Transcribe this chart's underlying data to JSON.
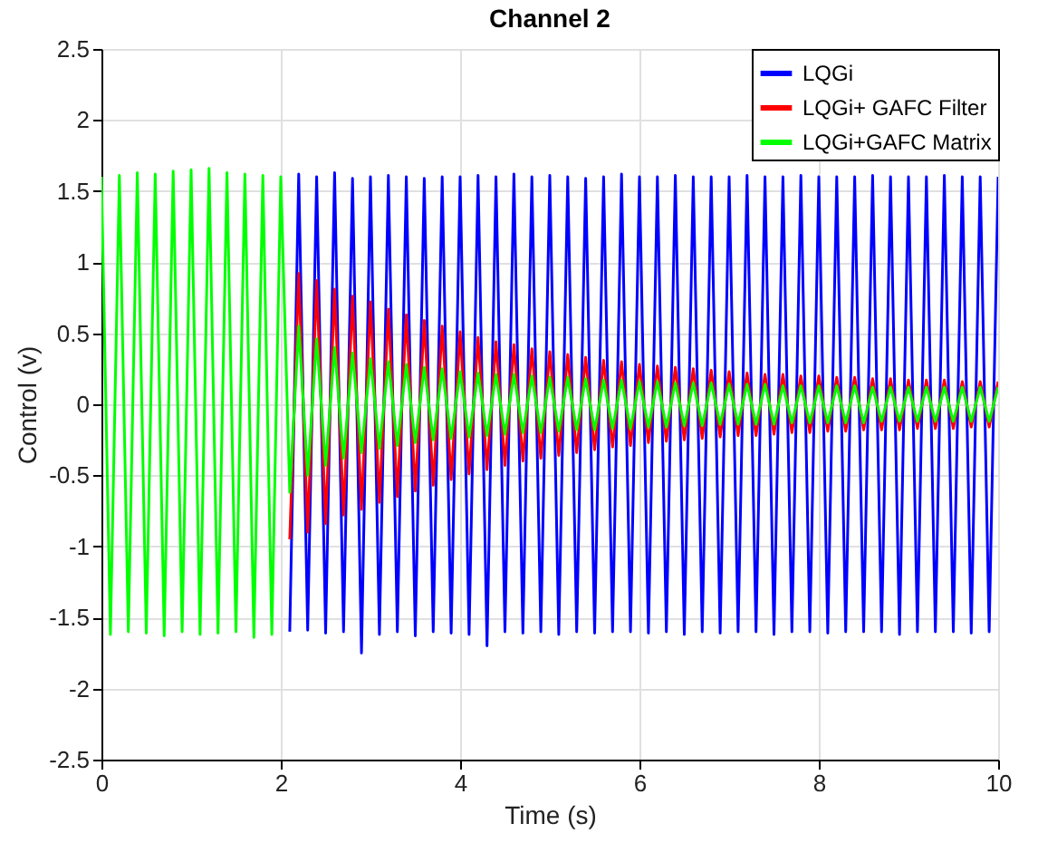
{
  "chart_data": {
    "type": "line",
    "title": "Channel 2",
    "xlabel": "Time (s)",
    "ylabel": "Control (v)",
    "xlim": [
      0,
      10
    ],
    "xticks": [
      0,
      2,
      4,
      6,
      8,
      10
    ],
    "ylim": [
      -2.5,
      2.5
    ],
    "yticks": [
      -2.5,
      -2,
      -1.5,
      -1,
      -0.5,
      0,
      0.5,
      1,
      1.5,
      2,
      2.5
    ],
    "grid": true,
    "legend": "top right",
    "series": [
      {
        "name": "LQGi",
        "color": "#0000ff",
        "x": [
          2.1,
          2.2,
          2.3,
          2.4,
          2.5,
          2.6,
          2.7,
          2.8,
          2.9,
          3,
          3.1,
          3.2,
          3.3,
          3.4,
          3.5,
          3.6,
          3.7,
          3.8,
          3.9,
          4,
          4.1,
          4.2,
          4.3,
          4.4,
          4.5,
          4.6,
          4.7,
          4.8,
          4.9,
          5,
          5.1,
          5.2,
          5.3,
          5.4,
          5.5,
          5.6,
          5.7,
          5.8,
          5.9,
          6,
          6.1,
          6.2,
          6.3,
          6.4,
          6.5,
          6.6,
          6.7,
          6.8,
          6.9,
          7,
          7.1,
          7.2,
          7.3,
          7.4,
          7.5,
          7.6,
          7.7,
          7.8,
          7.9,
          8,
          8.1,
          8.2,
          8.3,
          8.4,
          8.5,
          8.6,
          8.7,
          8.8,
          8.9,
          9,
          9.1,
          9.2,
          9.3,
          9.4,
          9.5,
          9.6,
          9.7,
          9.8,
          9.9,
          10
        ],
        "values": [
          -1.6,
          1.62,
          -1.59,
          1.6,
          -1.61,
          1.63,
          -1.6,
          1.59,
          -1.75,
          1.6,
          -1.62,
          1.61,
          -1.6,
          1.6,
          -1.63,
          1.59,
          -1.6,
          1.6,
          -1.61,
          1.6,
          -1.62,
          1.61,
          -1.7,
          1.6,
          -1.6,
          1.62,
          -1.61,
          1.6,
          -1.6,
          1.61,
          -1.62,
          1.6,
          -1.6,
          1.59,
          -1.61,
          1.6,
          -1.6,
          1.62,
          -1.6,
          1.6,
          -1.61,
          1.6,
          -1.6,
          1.61,
          -1.62,
          1.6,
          -1.6,
          1.6,
          -1.61,
          1.6,
          -1.6,
          1.61,
          -1.6,
          1.6,
          -1.62,
          1.6,
          -1.6,
          1.61,
          -1.6,
          1.6,
          -1.61,
          1.6,
          -1.6,
          1.6,
          -1.6,
          1.61,
          -1.6,
          1.6,
          -1.62,
          1.6,
          -1.6,
          1.6,
          -1.6,
          1.61,
          -1.6,
          1.6,
          -1.61,
          1.6,
          -1.6,
          1.6
        ]
      },
      {
        "name": "LQGi+ GAFC Filter",
        "color": "#ff0000",
        "x": [
          2.1,
          2.2,
          2.3,
          2.4,
          2.5,
          2.6,
          2.7,
          2.8,
          2.9,
          3,
          3.1,
          3.2,
          3.3,
          3.4,
          3.5,
          3.6,
          3.7,
          3.8,
          3.9,
          4,
          4.1,
          4.2,
          4.3,
          4.4,
          4.5,
          4.6,
          4.7,
          4.8,
          4.9,
          5,
          5.1,
          5.2,
          5.3,
          5.4,
          5.5,
          5.6,
          5.7,
          5.8,
          5.9,
          6,
          6.1,
          6.2,
          6.3,
          6.4,
          6.5,
          6.6,
          6.7,
          6.8,
          6.9,
          7,
          7.1,
          7.2,
          7.3,
          7.4,
          7.5,
          7.6,
          7.7,
          7.8,
          7.9,
          8,
          8.1,
          8.2,
          8.3,
          8.4,
          8.5,
          8.6,
          8.7,
          8.8,
          8.9,
          9,
          9.1,
          9.2,
          9.3,
          9.4,
          9.5,
          9.6,
          9.7,
          9.8,
          9.9,
          10
        ],
        "values": [
          -0.95,
          0.92,
          -0.9,
          0.87,
          -0.84,
          0.81,
          -0.78,
          0.76,
          -0.74,
          0.72,
          -0.69,
          0.67,
          -0.65,
          0.63,
          -0.61,
          0.59,
          -0.57,
          0.55,
          -0.53,
          0.51,
          -0.49,
          0.47,
          -0.46,
          0.44,
          -0.43,
          0.42,
          -0.4,
          0.39,
          -0.38,
          0.37,
          -0.36,
          0.35,
          -0.34,
          0.33,
          -0.32,
          0.31,
          -0.3,
          0.3,
          -0.29,
          0.28,
          -0.27,
          0.27,
          -0.26,
          0.26,
          -0.25,
          0.25,
          -0.24,
          0.24,
          -0.23,
          0.23,
          -0.22,
          0.22,
          -0.22,
          0.21,
          -0.21,
          0.21,
          -0.2,
          0.2,
          -0.2,
          0.2,
          -0.19,
          0.19,
          -0.19,
          0.19,
          -0.18,
          0.18,
          -0.18,
          0.18,
          -0.18,
          0.17,
          -0.17,
          0.17,
          -0.17,
          0.17,
          -0.17,
          0.16,
          -0.16,
          0.16,
          -0.16,
          0.16
        ]
      },
      {
        "name": "LQGi+GAFC Matrix",
        "color": "#00ff00",
        "x": [
          0,
          0.1,
          0.2,
          0.3,
          0.4,
          0.5,
          0.6,
          0.7,
          0.8,
          0.9,
          1,
          1.1,
          1.2,
          1.3,
          1.4,
          1.5,
          1.6,
          1.7,
          1.8,
          1.9,
          2,
          2.1,
          2.2,
          2.3,
          2.4,
          2.5,
          2.6,
          2.7,
          2.8,
          2.9,
          3,
          3.1,
          3.2,
          3.3,
          3.4,
          3.5,
          3.6,
          3.7,
          3.8,
          3.9,
          4,
          4.1,
          4.2,
          4.3,
          4.4,
          4.5,
          4.6,
          4.7,
          4.8,
          4.9,
          5,
          5.1,
          5.2,
          5.3,
          5.4,
          5.5,
          5.6,
          5.7,
          5.8,
          5.9,
          6,
          6.1,
          6.2,
          6.3,
          6.4,
          6.5,
          6.6,
          6.7,
          6.8,
          6.9,
          7,
          7.1,
          7.2,
          7.3,
          7.4,
          7.5,
          7.6,
          7.7,
          7.8,
          7.9,
          8,
          8.1,
          8.2,
          8.3,
          8.4,
          8.5,
          8.6,
          8.7,
          8.8,
          8.9,
          9,
          9.1,
          9.2,
          9.3,
          9.4,
          9.5,
          9.6,
          9.7,
          9.8,
          9.9,
          10
        ],
        "values": [
          1.6,
          -1.62,
          1.61,
          -1.6,
          1.63,
          -1.61,
          1.62,
          -1.63,
          1.64,
          -1.6,
          1.65,
          -1.62,
          1.66,
          -1.61,
          1.63,
          -1.6,
          1.62,
          -1.64,
          1.61,
          -1.62,
          1.6,
          -0.62,
          0.55,
          -0.5,
          0.46,
          -0.43,
          0.4,
          -0.38,
          0.36,
          -0.34,
          0.32,
          -0.31,
          0.3,
          -0.29,
          0.28,
          -0.27,
          0.26,
          -0.25,
          0.25,
          -0.24,
          0.23,
          -0.23,
          0.22,
          -0.22,
          0.21,
          -0.21,
          0.21,
          -0.2,
          0.2,
          -0.2,
          0.19,
          -0.19,
          0.19,
          -0.18,
          0.18,
          -0.18,
          0.17,
          -0.17,
          0.17,
          -0.17,
          0.16,
          -0.16,
          0.16,
          -0.16,
          0.15,
          -0.15,
          0.15,
          -0.15,
          0.15,
          -0.14,
          0.14,
          -0.14,
          0.14,
          -0.14,
          0.14,
          -0.14,
          0.13,
          -0.13,
          0.13,
          -0.13,
          0.13,
          -0.13,
          0.13,
          -0.13,
          0.13,
          -0.13,
          0.12,
          -0.12,
          0.12,
          -0.12,
          0.12,
          -0.12,
          0.12,
          -0.12,
          0.12,
          -0.12,
          0.12,
          -0.12,
          0.12,
          -0.12,
          0.12
        ]
      }
    ]
  }
}
